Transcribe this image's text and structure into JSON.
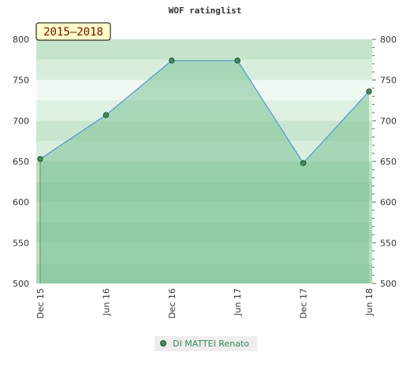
{
  "chart_data": {
    "type": "area",
    "title": "WOF ratinglist",
    "badge": "2015–2018",
    "categories": [
      "Dec 15",
      "Jun 16",
      "Dec 16",
      "Jun 17",
      "Dec 17",
      "Jun 18"
    ],
    "values": [
      653,
      707,
      774,
      774,
      648,
      736
    ],
    "ylim": [
      500,
      800
    ],
    "yticks": [
      "500",
      "550",
      "600",
      "650",
      "700",
      "750",
      "800"
    ],
    "xlabel": "",
    "ylabel": "",
    "legend_position": "bottom-center",
    "series": [
      {
        "name": "DI MATTEI Renato",
        "values": [
          653,
          707,
          774,
          774,
          648,
          736
        ]
      }
    ],
    "colors": {
      "line": "#4f9ad6",
      "marker": "#3f8f5f",
      "fill": "#7cc394",
      "legend_text": "#2e8b57",
      "badge_bg": "#ffffc8",
      "badge_text": "#8b0000"
    }
  }
}
